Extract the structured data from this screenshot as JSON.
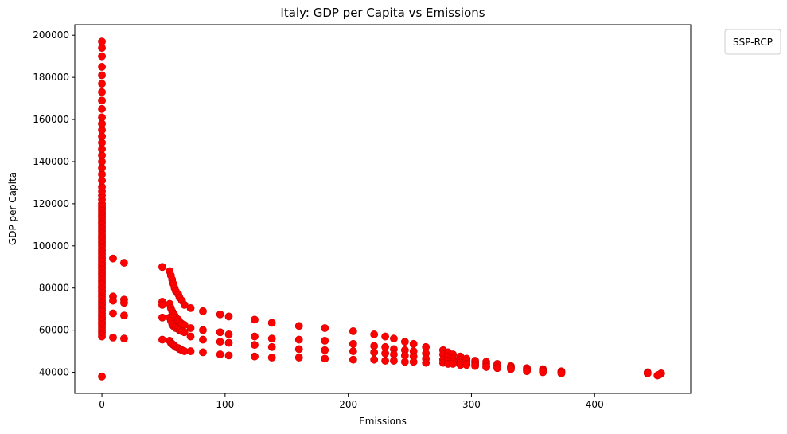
{
  "chart_data": {
    "type": "scatter",
    "title": "Italy: GDP per Capita vs Emissions",
    "xlabel": "Emissions",
    "ylabel": "GDP per Capita",
    "xlim": [
      -22,
      478
    ],
    "ylim": [
      30000,
      205000
    ],
    "xticks": [
      0,
      100,
      200,
      300,
      400
    ],
    "yticks": [
      40000,
      60000,
      80000,
      100000,
      120000,
      140000,
      160000,
      180000,
      200000
    ],
    "grid": false,
    "legend": {
      "title": "SSP-RCP",
      "placement": "outside top-right",
      "entries": []
    },
    "marker_color": "#ff0000",
    "series": [
      {
        "points": [
          [
            0,
            38000
          ],
          [
            0,
            57000
          ],
          [
            0,
            58000
          ],
          [
            0,
            59000
          ],
          [
            0,
            60000
          ],
          [
            0,
            61000
          ],
          [
            0,
            62000
          ],
          [
            0,
            63000
          ],
          [
            0,
            64000
          ],
          [
            0,
            65000
          ],
          [
            0,
            66000
          ],
          [
            0,
            67000
          ],
          [
            0,
            68000
          ],
          [
            0,
            69000
          ],
          [
            0,
            70000
          ],
          [
            0,
            71000
          ],
          [
            0,
            72000
          ],
          [
            0,
            73000
          ],
          [
            0,
            74000
          ],
          [
            0,
            75000
          ],
          [
            0,
            76000
          ],
          [
            0,
            77000
          ],
          [
            0,
            78000
          ],
          [
            0,
            79000
          ],
          [
            0,
            80000
          ],
          [
            0,
            81000
          ],
          [
            0,
            82000
          ],
          [
            0,
            83000
          ],
          [
            0,
            84000
          ],
          [
            0,
            85000
          ],
          [
            0,
            86000
          ],
          [
            0,
            87000
          ],
          [
            0,
            88000
          ],
          [
            0,
            89000
          ],
          [
            0,
            90000
          ],
          [
            0,
            91000
          ],
          [
            0,
            92000
          ],
          [
            0,
            93000
          ],
          [
            0,
            94000
          ],
          [
            0,
            95000
          ],
          [
            0,
            96000
          ],
          [
            0,
            97000
          ],
          [
            0,
            98000
          ],
          [
            0,
            99000
          ],
          [
            0,
            100000
          ],
          [
            0,
            101000
          ],
          [
            0,
            102000
          ],
          [
            0,
            103000
          ],
          [
            0,
            104000
          ],
          [
            0,
            105000
          ],
          [
            0,
            106000
          ],
          [
            0,
            107000
          ],
          [
            0,
            108000
          ],
          [
            0,
            109000
          ],
          [
            0,
            110000
          ],
          [
            0,
            111000
          ],
          [
            0,
            112000
          ],
          [
            0,
            113000
          ],
          [
            0,
            114000
          ],
          [
            0,
            115000
          ],
          [
            0,
            116000
          ],
          [
            0,
            117000
          ],
          [
            0,
            118000
          ],
          [
            0,
            119000
          ],
          [
            0,
            120000
          ],
          [
            0,
            122000
          ],
          [
            0,
            124000
          ],
          [
            0,
            126000
          ],
          [
            0,
            128000
          ],
          [
            0,
            131000
          ],
          [
            0,
            134000
          ],
          [
            0,
            137000
          ],
          [
            0,
            140000
          ],
          [
            0,
            143000
          ],
          [
            0,
            146000
          ],
          [
            0,
            149000
          ],
          [
            0,
            152000
          ],
          [
            0,
            155000
          ],
          [
            0,
            158000
          ],
          [
            0,
            161000
          ],
          [
            0,
            165000
          ],
          [
            0,
            169000
          ],
          [
            0,
            173000
          ],
          [
            0,
            177000
          ],
          [
            0,
            181000
          ],
          [
            0,
            185000
          ],
          [
            0,
            190000
          ],
          [
            0,
            194000
          ],
          [
            0,
            197000
          ],
          [
            9,
            94000
          ],
          [
            9,
            76000
          ],
          [
            9,
            74000
          ],
          [
            9,
            68000
          ],
          [
            9,
            56500
          ],
          [
            18,
            92000
          ],
          [
            18,
            74500
          ],
          [
            18,
            73000
          ],
          [
            18,
            67000
          ],
          [
            18,
            56000
          ],
          [
            49,
            90000
          ],
          [
            49,
            73500
          ],
          [
            49,
            72000
          ],
          [
            49,
            66000
          ],
          [
            49,
            55500
          ],
          [
            55,
            88000
          ],
          [
            56,
            86000
          ],
          [
            57,
            84000
          ],
          [
            58,
            82000
          ],
          [
            59,
            80000
          ],
          [
            60,
            78500
          ],
          [
            62,
            77000
          ],
          [
            63,
            75500
          ],
          [
            65,
            74000
          ],
          [
            67,
            72000
          ],
          [
            55,
            72500
          ],
          [
            56,
            70500
          ],
          [
            57,
            69000
          ],
          [
            58,
            68000
          ],
          [
            59,
            67000
          ],
          [
            60,
            66000
          ],
          [
            62,
            65000
          ],
          [
            63,
            64000
          ],
          [
            65,
            63000
          ],
          [
            67,
            62500
          ],
          [
            55,
            66000
          ],
          [
            56,
            64500
          ],
          [
            57,
            63000
          ],
          [
            58,
            62000
          ],
          [
            59,
            61500
          ],
          [
            60,
            61000
          ],
          [
            62,
            60500
          ],
          [
            63,
            60000
          ],
          [
            65,
            59500
          ],
          [
            67,
            59000
          ],
          [
            55,
            55000
          ],
          [
            56,
            54000
          ],
          [
            57,
            53500
          ],
          [
            58,
            53000
          ],
          [
            59,
            52500
          ],
          [
            60,
            52000
          ],
          [
            62,
            51500
          ],
          [
            63,
            51000
          ],
          [
            65,
            50500
          ],
          [
            67,
            50000
          ],
          [
            72,
            70500
          ],
          [
            72,
            61000
          ],
          [
            72,
            57000
          ],
          [
            72,
            50000
          ],
          [
            82,
            69000
          ],
          [
            82,
            60000
          ],
          [
            82,
            55500
          ],
          [
            82,
            49500
          ],
          [
            96,
            67500
          ],
          [
            96,
            59000
          ],
          [
            96,
            54500
          ],
          [
            96,
            48500
          ],
          [
            103,
            66500
          ],
          [
            103,
            58000
          ],
          [
            103,
            54000
          ],
          [
            103,
            48000
          ],
          [
            124,
            65000
          ],
          [
            124,
            57000
          ],
          [
            124,
            53000
          ],
          [
            124,
            47500
          ],
          [
            138,
            63500
          ],
          [
            138,
            56000
          ],
          [
            138,
            52000
          ],
          [
            138,
            47000
          ],
          [
            160,
            62000
          ],
          [
            160,
            55500
          ],
          [
            160,
            51000
          ],
          [
            160,
            47000
          ],
          [
            181,
            61000
          ],
          [
            181,
            55000
          ],
          [
            181,
            50500
          ],
          [
            181,
            46500
          ],
          [
            204,
            59500
          ],
          [
            204,
            53500
          ],
          [
            204,
            50000
          ],
          [
            204,
            46000
          ],
          [
            221,
            58000
          ],
          [
            221,
            52500
          ],
          [
            221,
            49500
          ],
          [
            221,
            46000
          ],
          [
            230,
            57000
          ],
          [
            230,
            52000
          ],
          [
            230,
            49000
          ],
          [
            230,
            45500
          ],
          [
            237,
            56000
          ],
          [
            237,
            51000
          ],
          [
            237,
            48500
          ],
          [
            237,
            45500
          ],
          [
            246,
            54500
          ],
          [
            246,
            50500
          ],
          [
            246,
            48000
          ],
          [
            246,
            45000
          ],
          [
            253,
            53500
          ],
          [
            253,
            50000
          ],
          [
            253,
            47500
          ],
          [
            253,
            45000
          ],
          [
            263,
            52000
          ],
          [
            263,
            49000
          ],
          [
            263,
            46500
          ],
          [
            263,
            44500
          ],
          [
            277,
            50500
          ],
          [
            277,
            48500
          ],
          [
            277,
            46000
          ],
          [
            277,
            44500
          ],
          [
            281,
            49500
          ],
          [
            281,
            47500
          ],
          [
            281,
            45500
          ],
          [
            281,
            44000
          ],
          [
            285,
            48500
          ],
          [
            285,
            46500
          ],
          [
            285,
            45000
          ],
          [
            285,
            44000
          ],
          [
            291,
            47500
          ],
          [
            291,
            46000
          ],
          [
            291,
            44500
          ],
          [
            291,
            43500
          ],
          [
            296,
            46500
          ],
          [
            296,
            45500
          ],
          [
            296,
            44000
          ],
          [
            296,
            43500
          ],
          [
            303,
            45500
          ],
          [
            303,
            44500
          ],
          [
            303,
            43500
          ],
          [
            303,
            43000
          ],
          [
            312,
            45000
          ],
          [
            312,
            44000
          ],
          [
            312,
            43000
          ],
          [
            312,
            42500
          ],
          [
            321,
            44000
          ],
          [
            321,
            43500
          ],
          [
            321,
            42500
          ],
          [
            321,
            42000
          ],
          [
            332,
            43000
          ],
          [
            332,
            42500
          ],
          [
            332,
            42000
          ],
          [
            332,
            41500
          ],
          [
            345,
            42000
          ],
          [
            345,
            41500
          ],
          [
            345,
            41000
          ],
          [
            345,
            40500
          ],
          [
            358,
            41500
          ],
          [
            358,
            41000
          ],
          [
            358,
            40500
          ],
          [
            358,
            40000
          ],
          [
            373,
            40500
          ],
          [
            373,
            40000
          ],
          [
            373,
            40000
          ],
          [
            373,
            39500
          ],
          [
            443,
            40000
          ],
          [
            443,
            39500
          ],
          [
            451,
            38500
          ],
          [
            453,
            39000
          ],
          [
            454,
            39500
          ],
          [
            452,
            38800
          ]
        ]
      }
    ]
  }
}
